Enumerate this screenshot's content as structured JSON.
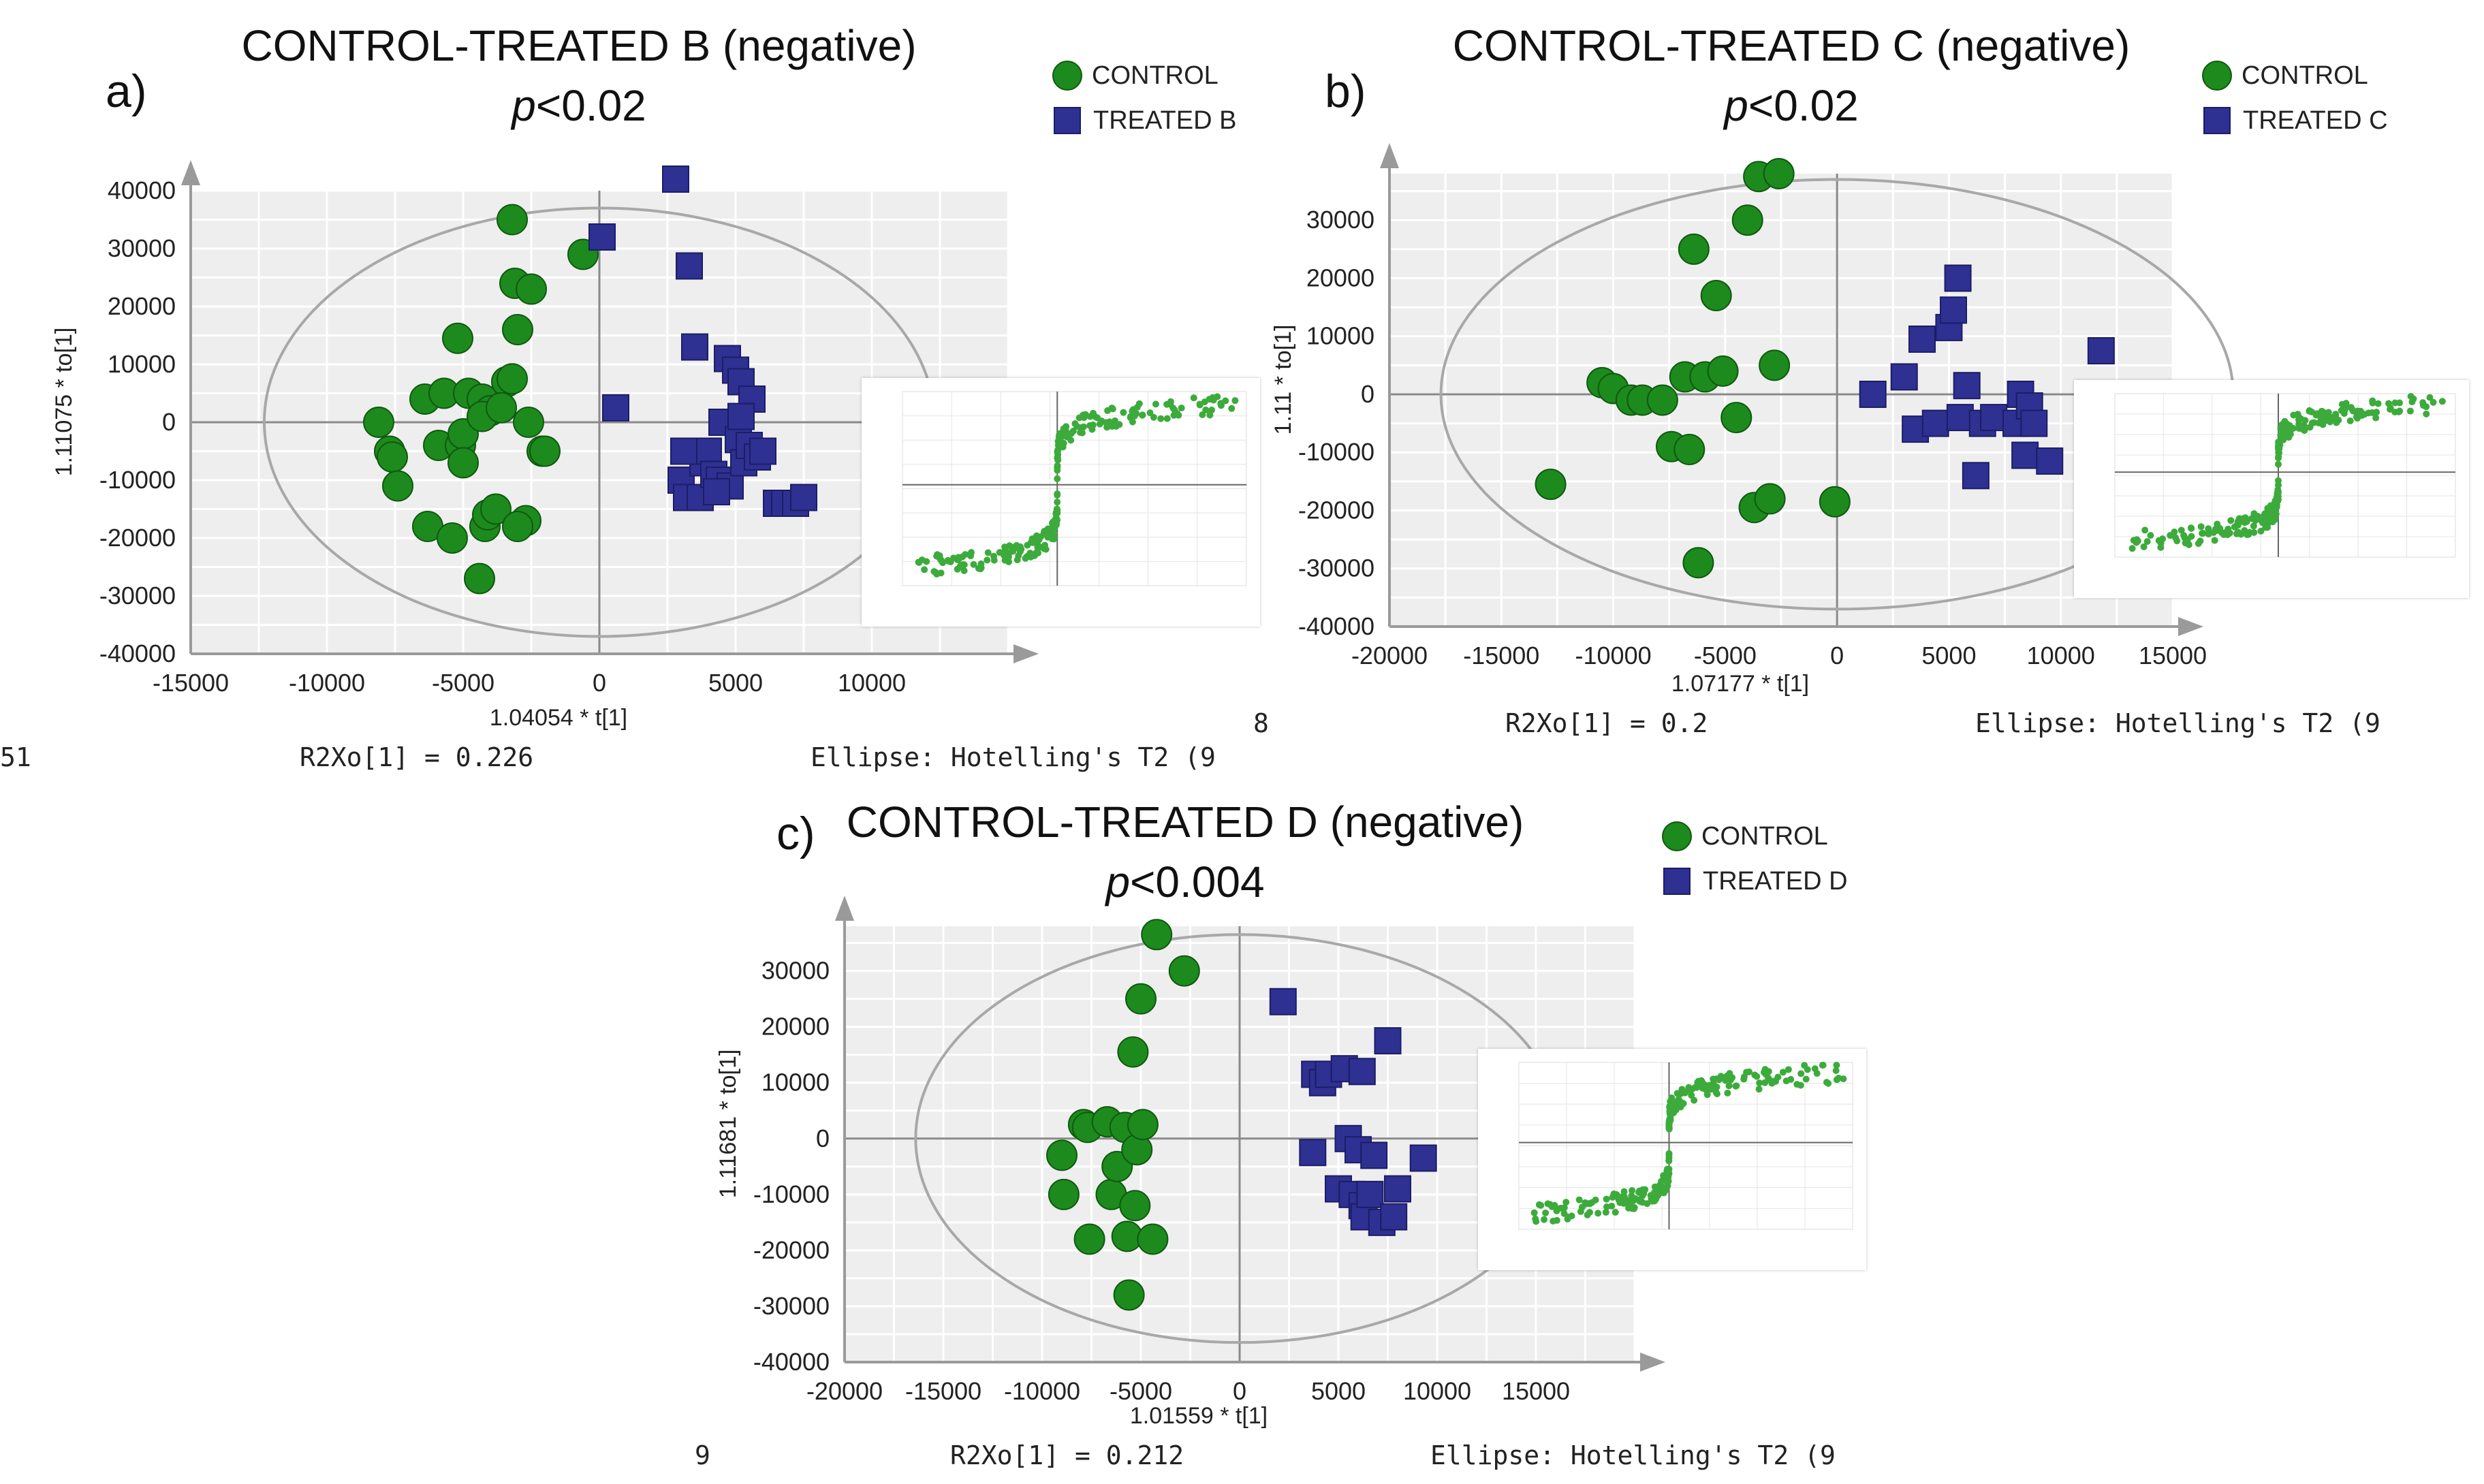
{
  "legend_labels": {
    "control": "CONTROL"
  },
  "colors": {
    "control": "#1d8a1d",
    "treated": "#2e3192",
    "plot_bg": "#eeeeee",
    "inset_point": "#3cab3c"
  },
  "panels": [
    {
      "tag": "a)",
      "title": "CONTROL-TREATED B (negative)",
      "p_text": "<0.02",
      "legend_treated": "TREATED B",
      "r2xo": "R2Xo[1] = 0.226",
      "ellipse": "Ellipse: Hotelling's T2 (9",
      "left_fragment": "51"
    },
    {
      "tag": "b)",
      "title": "CONTROL-TREATED C (negative)",
      "p_text": "<0.02",
      "legend_treated": "TREATED C",
      "r2xo": "R2Xo[1] = 0.2",
      "ellipse": "Ellipse: Hotelling's T2 (9",
      "left_fragment": "8"
    },
    {
      "tag": "c)",
      "title": "CONTROL-TREATED D (negative)",
      "p_text": "<0.004",
      "legend_treated": "TREATED D",
      "r2xo": "R2Xo[1] = 0.212",
      "ellipse": "Ellipse: Hotelling's T2 (9",
      "left_fragment": "9"
    }
  ],
  "chart_data": [
    {
      "type": "scatter",
      "title": "CONTROL-TREATED B (negative)",
      "xlabel": "1.04054 * t[1]",
      "ylabel": "1.11075 * to[1]",
      "xlim": [
        -15000,
        15000
      ],
      "ylim": [
        -40000,
        40000
      ],
      "x_ticks": [
        -15000,
        -10000,
        -5000,
        0,
        5000,
        10000
      ],
      "y_ticks": [
        -40000,
        -30000,
        -20000,
        -10000,
        0,
        10000,
        20000,
        30000,
        40000
      ],
      "ellipse": {
        "cx": 0,
        "cy": 0,
        "rx": 12300,
        "ry": 37000
      },
      "series": [
        {
          "name": "CONTROL",
          "marker": "circle",
          "x": [
            -8100,
            -7700,
            -7600,
            -7400,
            -6400,
            -6300,
            -5900,
            -5700,
            -5400,
            -5100,
            -5000,
            -5000,
            -4800,
            -4400,
            -4300,
            -4200,
            -4100,
            -4000,
            -3800,
            -3400,
            -3200,
            -3100,
            -3000,
            -2700,
            -2600,
            -2500,
            -2100,
            -2000,
            -600,
            -3200,
            -3000,
            -4300,
            -5200,
            -3600
          ],
          "y": [
            0,
            -5000,
            -6000,
            -11000,
            4000,
            -18000,
            -4000,
            5000,
            -20000,
            -4000,
            -2000,
            -7000,
            5000,
            -27000,
            4000,
            -18000,
            -16000,
            2000,
            -15000,
            7000,
            35000,
            24000,
            16000,
            -17000,
            0,
            23000,
            -5000,
            -5000,
            29000,
            7500,
            -18000,
            1000,
            14500,
            2500
          ]
        },
        {
          "name": "TREATED B",
          "marker": "square",
          "x": [
            100,
            600,
            2800,
            3000,
            3200,
            3300,
            3500,
            3700,
            3800,
            4000,
            4200,
            4400,
            4500,
            4700,
            4800,
            5000,
            5100,
            5200,
            5300,
            5500,
            5600,
            5800,
            6000,
            6500,
            6800,
            7200,
            7500,
            3100,
            4300,
            5200
          ],
          "y": [
            32000,
            2500,
            42000,
            -10000,
            -13000,
            27000,
            13000,
            -13000,
            -7000,
            -5000,
            -9000,
            -10000,
            0,
            11000,
            -11000,
            9000,
            -3000,
            7000,
            -7000,
            -4000,
            4000,
            -6000,
            -5000,
            -14000,
            -14000,
            -14000,
            -13000,
            -5000,
            -12000,
            1000
          ]
        }
      ]
    },
    {
      "type": "scatter",
      "title": "CONTROL-TREATED C (negative)",
      "xlabel": "1.07177 * t[1]",
      "ylabel": "1.11 * to[1]",
      "xlim": [
        -20000,
        15000
      ],
      "ylim": [
        -40000,
        38000
      ],
      "x_ticks": [
        -20000,
        -15000,
        -10000,
        -5000,
        0,
        5000,
        10000,
        15000
      ],
      "y_ticks": [
        -40000,
        -30000,
        -20000,
        -10000,
        0,
        10000,
        20000,
        30000
      ],
      "ellipse": {
        "cx": 0,
        "cy": 0,
        "rx": 17700,
        "ry": 37000
      },
      "series": [
        {
          "name": "CONTROL",
          "marker": "circle",
          "x": [
            -12800,
            -10500,
            -10000,
            -9200,
            -8700,
            -7800,
            -7400,
            -6800,
            -6600,
            -6400,
            -6200,
            -5900,
            -5400,
            -5100,
            -4500,
            -4000,
            -3700,
            -3500,
            -3000,
            -2800,
            -2600,
            -100
          ],
          "y": [
            -15500,
            2000,
            1000,
            -1000,
            -1000,
            -1000,
            -9000,
            3000,
            -9500,
            25000,
            -29000,
            3000,
            17000,
            4000,
            -4000,
            30000,
            -19500,
            37500,
            -18000,
            5000,
            38000,
            -18500
          ]
        },
        {
          "name": "TREATED C",
          "marker": "square",
          "x": [
            1600,
            3000,
            3500,
            3800,
            4400,
            5000,
            5200,
            5400,
            5500,
            5800,
            6200,
            6500,
            7000,
            8000,
            8200,
            8400,
            8600,
            8800,
            9500,
            11800
          ],
          "y": [
            0,
            3000,
            -6000,
            9500,
            -5000,
            11500,
            14500,
            20000,
            -4000,
            1500,
            -14000,
            -5000,
            -4000,
            -5000,
            0,
            -10500,
            -2000,
            -5000,
            -11500,
            7500
          ]
        }
      ]
    },
    {
      "type": "scatter",
      "title": "CONTROL-TREATED D (negative)",
      "xlabel": "1.01559 * t[1]",
      "ylabel": "1.11681 * to[1]",
      "xlim": [
        -20000,
        20000
      ],
      "ylim": [
        -40000,
        38000
      ],
      "x_ticks": [
        -20000,
        -15000,
        -10000,
        -5000,
        0,
        5000,
        10000,
        15000
      ],
      "y_ticks": [
        -40000,
        -30000,
        -20000,
        -10000,
        0,
        10000,
        20000,
        30000
      ],
      "ellipse": {
        "cx": 0,
        "cy": 0,
        "rx": 16400,
        "ry": 36500
      },
      "series": [
        {
          "name": "CONTROL",
          "marker": "circle",
          "x": [
            -9000,
            -8900,
            -7900,
            -7700,
            -7600,
            -6700,
            -6500,
            -6200,
            -5800,
            -5700,
            -5600,
            -5400,
            -5300,
            -5200,
            -5000,
            -4900,
            -4400,
            -4200,
            -2800
          ],
          "y": [
            -3000,
            -10000,
            2500,
            2000,
            -18000,
            3000,
            -10000,
            -5000,
            2000,
            -17500,
            -28000,
            15500,
            -12000,
            -2000,
            25000,
            2500,
            -18000,
            36500,
            30000
          ]
        },
        {
          "name": "TREATED D",
          "marker": "square",
          "x": [
            2200,
            3700,
            3800,
            4200,
            4500,
            5000,
            5300,
            5500,
            5700,
            6000,
            6200,
            6300,
            6600,
            6800,
            7200,
            7500,
            7800,
            8000,
            9300,
            6200
          ],
          "y": [
            24500,
            -2500,
            11500,
            10000,
            11500,
            -9000,
            12500,
            0,
            -10000,
            -2000,
            -12000,
            -14000,
            -10000,
            -3000,
            -15000,
            17500,
            -14000,
            -9000,
            -3500,
            12000
          ]
        }
      ]
    }
  ]
}
